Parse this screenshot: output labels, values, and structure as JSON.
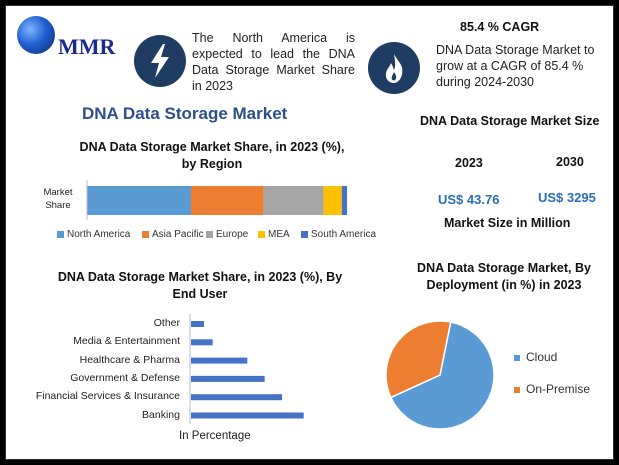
{
  "logo": {
    "text": "MMR"
  },
  "note_left": "The North America is expected to lead the DNA Data Storage Market Share in 2023",
  "cagr": {
    "heading": "85.4 % CAGR",
    "text": "DNA Data Storage Market to grow at a CAGR of 85.4 % during 2024-2030"
  },
  "main_title": "DNA Data Storage Market",
  "market_size": {
    "title": "Market Size in Million",
    "heading": "DNA Data Storage Market Size",
    "year_a": "2023",
    "year_b": "2030",
    "value_a": "US$ 43.76",
    "value_b": "US$ 3295"
  },
  "chart_data": [
    {
      "type": "bar",
      "orientation": "horizontal-stacked",
      "title": "DNA Data Storage Market Share, in 2023 (%), by Region",
      "categories": [
        "Market Share"
      ],
      "series": [
        {
          "name": "North America",
          "values": [
            40
          ],
          "color": "#5b9bd5"
        },
        {
          "name": "Asia Pacific",
          "values": [
            28
          ],
          "color": "#ed7d31"
        },
        {
          "name": "Europe",
          "values": [
            23
          ],
          "color": "#a5a5a5"
        },
        {
          "name": "MEA",
          "values": [
            7
          ],
          "color": "#ffc000"
        },
        {
          "name": "South America",
          "values": [
            2
          ],
          "color": "#4472c4"
        }
      ],
      "legend": "bottom"
    },
    {
      "type": "bar",
      "orientation": "horizontal",
      "title": "DNA Data Storage Market Share, in 2023 (%), By End User",
      "categories": [
        "Other",
        "Media & Entertainment",
        "Healthcare & Pharma",
        "Government & Defense",
        "Financial Services & Insurance",
        "Banking"
      ],
      "values": [
        3,
        5,
        13,
        17,
        21,
        26
      ],
      "xlabel": "In Percentage",
      "xlim": [
        0,
        30
      ],
      "color": "#4472c4"
    },
    {
      "type": "pie",
      "title": "DNA Data Storage Market, By Deployment (in %) in 2023",
      "labels": [
        "Cloud",
        "On-Premise"
      ],
      "values": [
        65,
        35
      ],
      "colors": [
        "#5b9bd5",
        "#ed7d31"
      ],
      "legend": "right"
    }
  ]
}
